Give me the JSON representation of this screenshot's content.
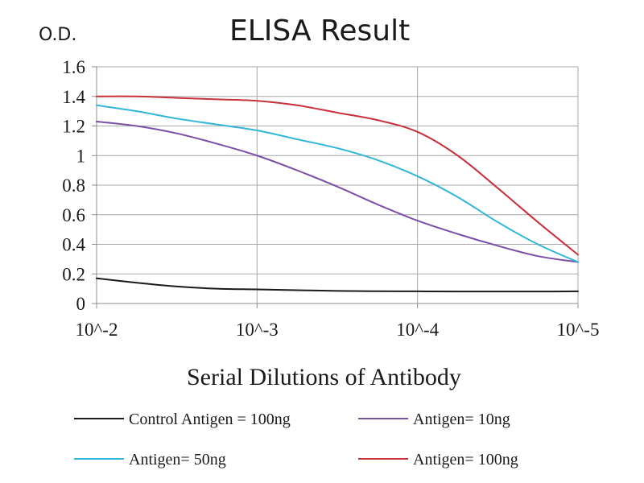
{
  "chart_data": {
    "type": "line",
    "title": "ELISA Result",
    "ylabel": "O.D.",
    "xlabel": "Serial Dilutions  of Antibody",
    "x_tick_labels": [
      "10^-2",
      "10^-3",
      "10^-4",
      "10^-5"
    ],
    "y_tick_labels": [
      "0",
      "0.2",
      "0.4",
      "0.6",
      "0.8",
      "1",
      "1.2",
      "1.4",
      "1.6"
    ],
    "ylim": [
      0,
      1.6
    ],
    "grid": true,
    "legend_position": "bottom",
    "x": [
      0,
      0.25,
      0.5,
      0.75,
      1,
      1.25,
      1.5,
      1.75,
      2,
      2.25,
      2.5,
      2.75,
      3
    ],
    "series": [
      {
        "name": "Control Antigen = 100ng",
        "color": "#1a1a1a",
        "values": [
          0.17,
          0.14,
          0.115,
          0.1,
          0.095,
          0.09,
          0.085,
          0.083,
          0.082,
          0.081,
          0.081,
          0.081,
          0.082
        ]
      },
      {
        "name": "Antigen= 10ng",
        "color": "#7b4fa6",
        "values": [
          1.23,
          1.2,
          1.15,
          1.08,
          1.0,
          0.9,
          0.79,
          0.67,
          0.56,
          0.47,
          0.39,
          0.32,
          0.28
        ]
      },
      {
        "name": "Antigen= 50ng",
        "color": "#31b6d8",
        "values": [
          1.34,
          1.3,
          1.25,
          1.21,
          1.17,
          1.11,
          1.05,
          0.97,
          0.86,
          0.72,
          0.55,
          0.4,
          0.28
        ]
      },
      {
        "name": "Antigen= 100ng",
        "color": "#c8303a",
        "values": [
          1.4,
          1.4,
          1.39,
          1.38,
          1.37,
          1.34,
          1.29,
          1.24,
          1.16,
          1.0,
          0.78,
          0.55,
          0.33
        ]
      }
    ]
  }
}
